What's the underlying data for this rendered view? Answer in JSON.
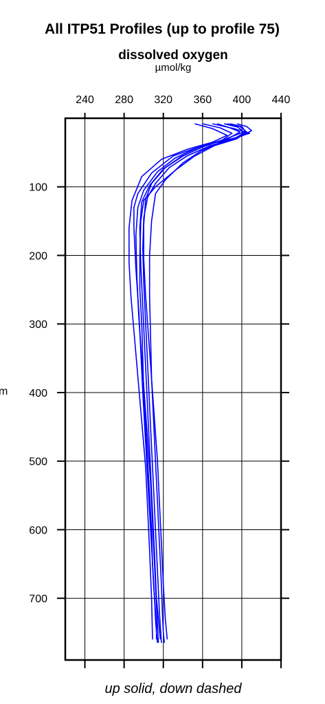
{
  "chart_data": {
    "type": "line",
    "title": "All ITP51 Profiles (up to profile 75)",
    "xlabel": "dissolved oxygen",
    "xunit": "µmol/kg",
    "ylabel": "m",
    "footer": "up solid, down dashed",
    "xlim": [
      220,
      440
    ],
    "ylim": [
      0,
      790
    ],
    "y_inverted": true,
    "x_ticks": [
      240,
      280,
      320,
      360,
      400,
      440
    ],
    "y_ticks": [
      100,
      200,
      300,
      400,
      500,
      600,
      700
    ],
    "x_axis_position": "top",
    "grid": true,
    "series_style": [
      {
        "name": "up",
        "color": "#0000ff",
        "dash": "solid"
      },
      {
        "name": "down",
        "color": "#dd0000",
        "dash": "dashed"
      }
    ],
    "series": [
      {
        "name": "up",
        "x": [
          385,
          398,
          405,
          395,
          372,
          352,
          333,
          312,
          300,
          297,
          296,
          296,
          298,
          299,
          300,
          302,
          304,
          306,
          308,
          309,
          310,
          311,
          312,
          313,
          313
        ],
        "y": [
          8,
          12,
          20,
          30,
          40,
          55,
          75,
          100,
          120,
          150,
          200,
          250,
          300,
          350,
          400,
          450,
          500,
          550,
          600,
          650,
          680,
          700,
          720,
          740,
          760
        ]
      },
      {
        "name": "up",
        "x": [
          370,
          392,
          408,
          390,
          360,
          330,
          308,
          294,
          290,
          290,
          292,
          295,
          297,
          299,
          301,
          303,
          305,
          307,
          309,
          311,
          312,
          313,
          314
        ],
        "y": [
          8,
          15,
          22,
          30,
          40,
          55,
          80,
          110,
          130,
          160,
          220,
          280,
          340,
          400,
          450,
          500,
          550,
          600,
          650,
          700,
          730,
          750,
          765
        ]
      },
      {
        "name": "up",
        "x": [
          395,
          405,
          410,
          400,
          380,
          358,
          340,
          322,
          312,
          308,
          306,
          306,
          307,
          308,
          310,
          312,
          314,
          316,
          318,
          319,
          320,
          321
        ],
        "y": [
          8,
          12,
          18,
          26,
          34,
          48,
          65,
          90,
          110,
          150,
          200,
          260,
          320,
          380,
          440,
          500,
          560,
          620,
          680,
          720,
          750,
          765
        ]
      },
      {
        "name": "up",
        "x": [
          352,
          370,
          385,
          370,
          345,
          318,
          298,
          288,
          285,
          285,
          287,
          290,
          293,
          296,
          299,
          302,
          304,
          306,
          308,
          309
        ],
        "y": [
          8,
          15,
          25,
          35,
          45,
          60,
          85,
          120,
          160,
          210,
          260,
          310,
          360,
          410,
          460,
          510,
          570,
          630,
          700,
          760
        ]
      },
      {
        "name": "up",
        "x": [
          388,
          400,
          404,
          392,
          368,
          344,
          326,
          312,
          304,
          300,
          299,
          300,
          302,
          304,
          306,
          308,
          310,
          312,
          314,
          316,
          318
        ],
        "y": [
          8,
          12,
          20,
          30,
          40,
          55,
          72,
          95,
          115,
          145,
          190,
          240,
          300,
          360,
          420,
          480,
          540,
          600,
          660,
          720,
          765
        ]
      },
      {
        "name": "up",
        "x": [
          360,
          378,
          390,
          380,
          356,
          332,
          314,
          300,
          294,
          292,
          293,
          295,
          298,
          301,
          304,
          307,
          309,
          311,
          313,
          315
        ],
        "y": [
          8,
          14,
          22,
          32,
          42,
          58,
          78,
          105,
          130,
          170,
          230,
          290,
          350,
          410,
          470,
          530,
          590,
          650,
          710,
          765
        ]
      },
      {
        "name": "up",
        "x": [
          382,
          396,
          402,
          384,
          360,
          338,
          320,
          306,
          298,
          296,
          297,
          299,
          301,
          303,
          305,
          307,
          309,
          311,
          313,
          317
        ],
        "y": [
          8,
          13,
          20,
          30,
          42,
          56,
          74,
          98,
          122,
          160,
          215,
          275,
          335,
          395,
          455,
          515,
          575,
          635,
          700,
          760
        ]
      },
      {
        "name": "up",
        "x": [
          375,
          388,
          398,
          386,
          362,
          340,
          322,
          308,
          302,
          300,
          300,
          302,
          305,
          308,
          311,
          314,
          316,
          318,
          320,
          322,
          324
        ],
        "y": [
          8,
          14,
          20,
          30,
          40,
          55,
          72,
          95,
          118,
          155,
          205,
          260,
          320,
          380,
          440,
          500,
          560,
          620,
          680,
          730,
          760
        ]
      }
    ]
  }
}
